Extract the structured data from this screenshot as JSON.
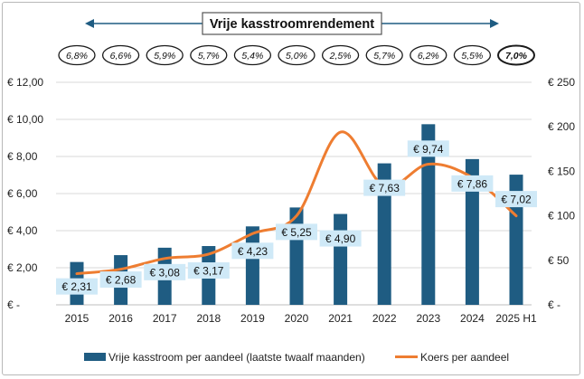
{
  "header": {
    "title": "Vrije kasstroomrendement",
    "yields": [
      "6,8%",
      "6,6%",
      "5,9%",
      "5,7%",
      "5,4%",
      "5,0%",
      "2,5%",
      "5,7%",
      "6,2%",
      "5,5%",
      "7,0%"
    ],
    "highlight_last": true
  },
  "colors": {
    "bar": "#1f5c82",
    "line": "#ee7d31",
    "label_bg": "#cfe9f7",
    "arrow": "#1f5c82"
  },
  "chart_data": {
    "type": "bar",
    "categories": [
      "2015",
      "2016",
      "2017",
      "2018",
      "2019",
      "2020",
      "2021",
      "2022",
      "2023",
      "2024",
      "2025 H1"
    ],
    "series": [
      {
        "name": "Vrije kasstroom per aandeel (laatste twaalf maanden)",
        "type": "bar",
        "axis": "left",
        "values": [
          2.31,
          2.68,
          3.08,
          3.17,
          4.23,
          5.25,
          4.9,
          7.63,
          9.74,
          7.86,
          7.02
        ],
        "labels": [
          "€ 2,31",
          "€ 2,68",
          "€ 3,08",
          "€ 3,17",
          "€ 4,23",
          "€ 5,25",
          "€ 4,90",
          "€ 7,63",
          "€ 9,74",
          "€ 7,86",
          "€ 7,02"
        ]
      },
      {
        "name": "Koers per aandeel",
        "type": "line",
        "axis": "right",
        "values": [
          35,
          40,
          52,
          57,
          80,
          100,
          194,
          133,
          158,
          143,
          100
        ]
      }
    ],
    "y_left": {
      "ylim": [
        0,
        12
      ],
      "ticks": [
        0,
        2,
        4,
        6,
        8,
        10,
        12
      ],
      "tick_labels": [
        "€ -",
        "€ 2,00",
        "€ 4,00",
        "€ 6,00",
        "€ 8,00",
        "€ 10,00",
        "€ 12,00"
      ]
    },
    "y_right": {
      "ylim": [
        0,
        250
      ],
      "ticks": [
        0,
        50,
        100,
        150,
        200,
        250
      ],
      "tick_labels": [
        "€ -",
        "€ 50",
        "€ 100",
        "€ 150",
        "€ 200",
        "€ 250"
      ]
    },
    "grid": true,
    "legend_position": "bottom"
  }
}
